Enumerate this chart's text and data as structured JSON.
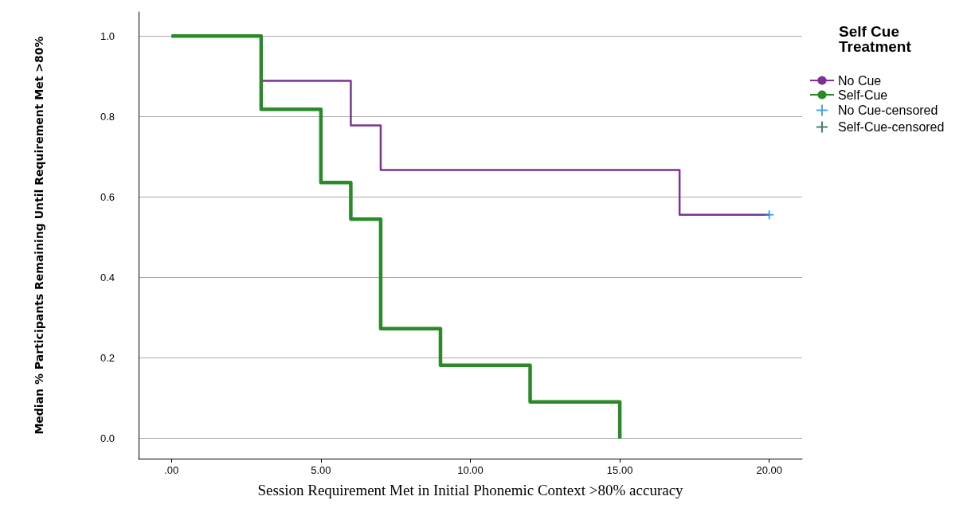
{
  "chart_data": {
    "type": "step",
    "xlabel": "Session Requirement Met in Initial Phonemic Context >80% accuracy",
    "ylabel": "Median % Participants Remaining Until Requirement Met >80%",
    "legend_title": "Self Cue Treatment",
    "series": [
      {
        "name": "No Cue",
        "color": "#7b3294",
        "x": [
          0,
          3,
          6,
          7,
          17,
          20
        ],
        "values": [
          1.0,
          0.889,
          0.778,
          0.667,
          0.556,
          0.556
        ]
      },
      {
        "name": "Self-Cue",
        "color": "#2a8a2a",
        "x": [
          0,
          3,
          5,
          6,
          7,
          9,
          12,
          15
        ],
        "values": [
          1.0,
          0.818,
          0.636,
          0.545,
          0.273,
          0.182,
          0.091,
          0.0
        ]
      },
      {
        "name": "No Cue-censored",
        "type": "scatter",
        "marker": "cross",
        "color": "#1e8fe0",
        "x": [
          20
        ],
        "values": [
          0.556
        ]
      },
      {
        "name": "Self-Cue-censored",
        "type": "scatter",
        "marker": "cross",
        "color": "#1a5e4a"
      }
    ],
    "xlim": [
      -1.1,
      21.1
    ],
    "xticks": [
      {
        "value": 0,
        "label": ".00"
      },
      {
        "value": 5,
        "label": "5.00"
      },
      {
        "value": 10,
        "label": "10.00"
      },
      {
        "value": 15,
        "label": "15.00"
      },
      {
        "value": 20,
        "label": "20.00"
      }
    ],
    "ylim": [
      -0.05,
      1.06
    ],
    "yticks": [
      {
        "value": 0,
        "label": "0.0"
      },
      {
        "value": 0.2,
        "label": "0.2"
      },
      {
        "value": 0.4,
        "label": "0.4"
      },
      {
        "value": 0.6,
        "label": "0.6"
      },
      {
        "value": 0.8,
        "label": "0.8"
      },
      {
        "value": 1.0,
        "label": "1.0"
      }
    ],
    "grid": "y",
    "legend": "right"
  }
}
